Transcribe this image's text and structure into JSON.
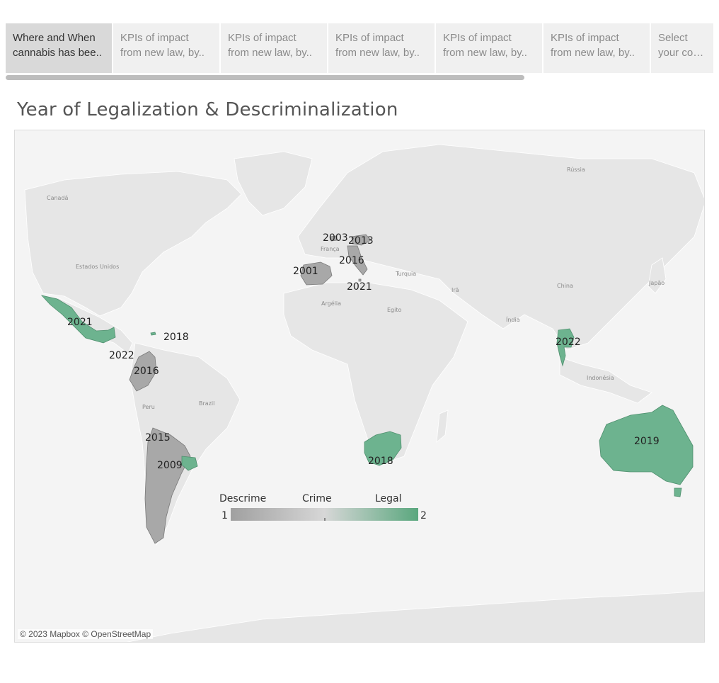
{
  "tabs": [
    {
      "line1": "Where and When",
      "line2": "cannabis has bee..",
      "active": true
    },
    {
      "line1": "KPIs of impact",
      "line2": "from new law, by..",
      "active": false
    },
    {
      "line1": "KPIs of impact",
      "line2": "from new law, by..",
      "active": false
    },
    {
      "line1": "KPIs of impact",
      "line2": "from new law, by..",
      "active": false
    },
    {
      "line1": "KPIs of impact",
      "line2": "from new law, by..",
      "active": false
    },
    {
      "line1": "KPIs of impact",
      "line2": "from new law, by..",
      "active": false
    },
    {
      "line1": "Select",
      "line2": "your coun..",
      "active": false
    }
  ],
  "title": "Year of Legalization & Descriminalization",
  "colors": {
    "legal": "#6db38f",
    "descrim": "#a8a8a8",
    "land": "#e6e6e6",
    "water": "#f4f4f4"
  },
  "geo_labels": [
    "Canadá",
    "Estados Unidos",
    "Rússia",
    "China",
    "Índia",
    "Irã",
    "Turquia",
    "Egito",
    "Argélia",
    "França",
    "Brazil",
    "Peru",
    "Indonésia",
    "Japão"
  ],
  "year_labels": [
    {
      "id": "mexico",
      "year": "2021"
    },
    {
      "id": "jamaica",
      "year": "2018"
    },
    {
      "id": "panama",
      "year": "2022"
    },
    {
      "id": "colombia",
      "year": "2016"
    },
    {
      "id": "chile",
      "year": "2015"
    },
    {
      "id": "argentina",
      "year": "2009"
    },
    {
      "id": "portugal",
      "year": "2001"
    },
    {
      "id": "belgium",
      "year": "2003"
    },
    {
      "id": "czech",
      "year": "2013"
    },
    {
      "id": "italy",
      "year": "2016"
    },
    {
      "id": "malta",
      "year": "2021"
    },
    {
      "id": "south-africa",
      "year": "2018"
    },
    {
      "id": "thailand",
      "year": "2022"
    },
    {
      "id": "australia",
      "year": "2019"
    }
  ],
  "legend": {
    "left": "Descrime",
    "middle": "Crime",
    "right": "Legal",
    "min": "1",
    "max": "2"
  },
  "attribution": "© 2023 Mapbox © OpenStreetMap"
}
